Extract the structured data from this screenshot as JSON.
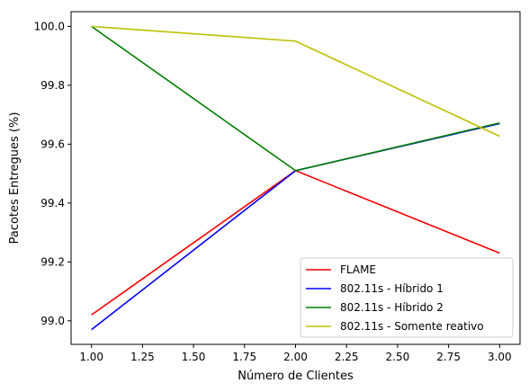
{
  "chart_data": {
    "type": "line",
    "title": "",
    "xlabel": "Número de Clientes",
    "ylabel": "Pacotes Entregues (%)",
    "xlim": [
      0.9,
      3.1
    ],
    "ylim": [
      98.92,
      100.05
    ],
    "xticks": [
      1.0,
      1.25,
      1.5,
      1.75,
      2.0,
      2.25,
      2.5,
      2.75,
      3.0
    ],
    "xtick_labels": [
      "1.00",
      "1.25",
      "1.50",
      "1.75",
      "2.00",
      "2.25",
      "2.50",
      "2.75",
      "3.00"
    ],
    "yticks": [
      99.0,
      99.2,
      99.4,
      99.6,
      99.8,
      100.0
    ],
    "ytick_labels": [
      "99.0",
      "99.2",
      "99.4",
      "99.6",
      "99.8",
      "100.0"
    ],
    "grid": false,
    "legend_position": "lower-right",
    "x": [
      1,
      2,
      3
    ],
    "series": [
      {
        "name": "FLAME",
        "color": "#ff0000",
        "values": [
          99.02,
          99.51,
          99.23
        ]
      },
      {
        "name": "802.11s - Híbrido 1",
        "color": "#0000ff",
        "values": [
          98.97,
          99.51,
          99.67
        ]
      },
      {
        "name": "802.11s - Híbrido 2",
        "color": "#008000",
        "values": [
          100.0,
          99.51,
          99.672
        ]
      },
      {
        "name": "802.11s - Somente reativo",
        "color": "#bfbf00",
        "values": [
          100.0,
          99.95,
          99.627
        ]
      }
    ]
  }
}
